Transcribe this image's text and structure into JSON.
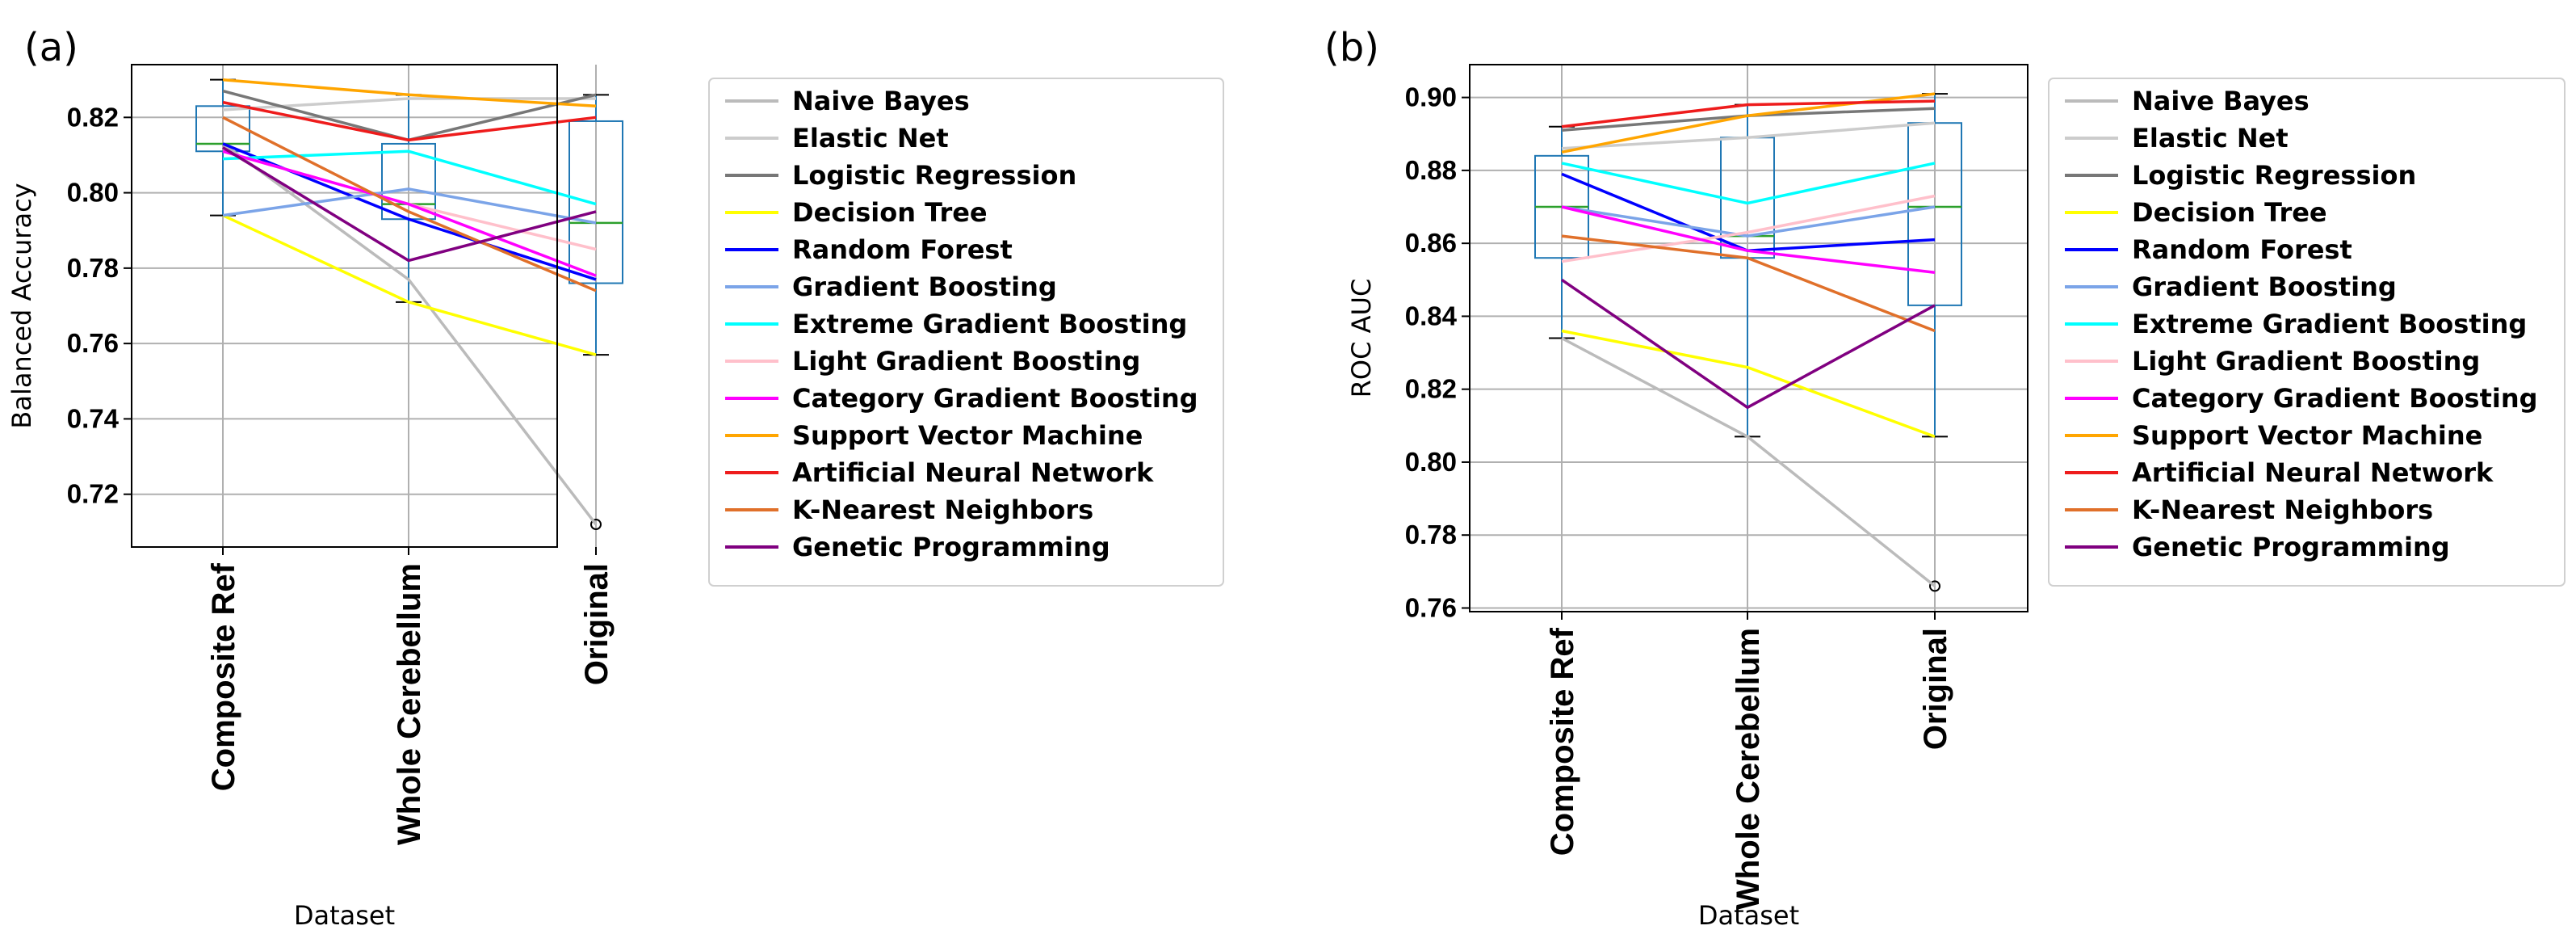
{
  "chart_data": [
    {
      "panel_label": "(a)",
      "type": "line",
      "ylabel": "Balanced Accuracy",
      "xlabel": "Dataset",
      "categories": [
        "Composite Ref",
        "Whole Cerebellum",
        "Original"
      ],
      "ylim": [
        0.706,
        0.834
      ],
      "yticks": [
        0.72,
        0.74,
        0.76,
        0.78,
        0.8,
        0.82
      ],
      "ytick_labels": [
        "0.72",
        "0.74",
        "0.76",
        "0.78",
        "0.80",
        "0.82"
      ],
      "grid": true,
      "legend_position": "right",
      "series": [
        {
          "name": "Naive Bayes",
          "color": "#bbbbbb",
          "values": [
            0.813,
            0.777,
            0.712
          ]
        },
        {
          "name": "Elastic Net",
          "color": "#cccccc",
          "values": [
            0.822,
            0.825,
            0.825
          ]
        },
        {
          "name": "Logistic Regression",
          "color": "#777777",
          "values": [
            0.827,
            0.814,
            0.826
          ]
        },
        {
          "name": "Decision Tree",
          "color": "#ffff00",
          "values": [
            0.794,
            0.771,
            0.757
          ]
        },
        {
          "name": "Random Forest",
          "color": "#0000ff",
          "values": [
            0.813,
            0.793,
            0.777
          ]
        },
        {
          "name": "Gradient Boosting",
          "color": "#7ba4e8",
          "values": [
            0.794,
            0.801,
            0.792
          ]
        },
        {
          "name": "Extreme Gradient Boosting",
          "color": "#00ffff",
          "values": [
            0.809,
            0.811,
            0.797
          ]
        },
        {
          "name": "Light Gradient Boosting",
          "color": "#ffc0cb",
          "values": [
            0.811,
            0.797,
            0.785
          ]
        },
        {
          "name": "Category Gradient Boosting",
          "color": "#ff00ff",
          "values": [
            0.811,
            0.797,
            0.778
          ]
        },
        {
          "name": "Support Vector Machine",
          "color": "#ffa500",
          "values": [
            0.83,
            0.826,
            0.823
          ]
        },
        {
          "name": "Artificial Neural Network",
          "color": "#ee1c1c",
          "values": [
            0.824,
            0.814,
            0.82
          ]
        },
        {
          "name": "K-Nearest Neighbors",
          "color": "#e0702a",
          "values": [
            0.82,
            0.795,
            0.774
          ]
        },
        {
          "name": "Genetic Programming",
          "color": "#800080",
          "values": [
            0.812,
            0.782,
            0.795
          ]
        }
      ],
      "boxes": [
        {
          "q1": 0.811,
          "median": 0.813,
          "q3": 0.823,
          "whisker_low": 0.794,
          "whisker_high": 0.83,
          "outliers": []
        },
        {
          "q1": 0.793,
          "median": 0.797,
          "q3": 0.813,
          "whisker_low": 0.771,
          "whisker_high": 0.826,
          "outliers": []
        },
        {
          "q1": 0.776,
          "median": 0.792,
          "q3": 0.819,
          "whisker_low": 0.757,
          "whisker_high": 0.826,
          "outliers": [
            0.712
          ]
        }
      ]
    },
    {
      "panel_label": "(b)",
      "type": "line",
      "ylabel": "ROC AUC",
      "xlabel": "Dataset",
      "categories": [
        "Composite Ref",
        "Whole Cerebellum",
        "Original"
      ],
      "ylim": [
        0.759,
        0.909
      ],
      "yticks": [
        0.76,
        0.78,
        0.8,
        0.82,
        0.84,
        0.86,
        0.88,
        0.9
      ],
      "ytick_labels": [
        "0.76",
        "0.78",
        "0.80",
        "0.82",
        "0.84",
        "0.86",
        "0.88",
        "0.90"
      ],
      "grid": true,
      "legend_position": "right",
      "series": [
        {
          "name": "Naive Bayes",
          "color": "#bbbbbb",
          "values": [
            0.834,
            0.807,
            0.766
          ]
        },
        {
          "name": "Elastic Net",
          "color": "#cccccc",
          "values": [
            0.886,
            0.889,
            0.893
          ]
        },
        {
          "name": "Logistic Regression",
          "color": "#777777",
          "values": [
            0.891,
            0.895,
            0.897
          ]
        },
        {
          "name": "Decision Tree",
          "color": "#ffff00",
          "values": [
            0.836,
            0.826,
            0.807
          ]
        },
        {
          "name": "Random Forest",
          "color": "#0000ff",
          "values": [
            0.879,
            0.858,
            0.861
          ]
        },
        {
          "name": "Gradient Boosting",
          "color": "#7ba4e8",
          "values": [
            0.87,
            0.862,
            0.87
          ]
        },
        {
          "name": "Extreme Gradient Boosting",
          "color": "#00ffff",
          "values": [
            0.882,
            0.871,
            0.882
          ]
        },
        {
          "name": "Light Gradient Boosting",
          "color": "#ffc0cb",
          "values": [
            0.855,
            0.863,
            0.873
          ]
        },
        {
          "name": "Category Gradient Boosting",
          "color": "#ff00ff",
          "values": [
            0.87,
            0.858,
            0.852
          ]
        },
        {
          "name": "Support Vector Machine",
          "color": "#ffa500",
          "values": [
            0.885,
            0.895,
            0.901
          ]
        },
        {
          "name": "Artificial Neural Network",
          "color": "#ee1c1c",
          "values": [
            0.892,
            0.898,
            0.899
          ]
        },
        {
          "name": "K-Nearest Neighbors",
          "color": "#e0702a",
          "values": [
            0.862,
            0.856,
            0.836
          ]
        },
        {
          "name": "Genetic Programming",
          "color": "#800080",
          "values": [
            0.85,
            0.815,
            0.843
          ]
        }
      ],
      "boxes": [
        {
          "q1": 0.856,
          "median": 0.87,
          "q3": 0.884,
          "whisker_low": 0.834,
          "whisker_high": 0.892,
          "outliers": []
        },
        {
          "q1": 0.856,
          "median": 0.862,
          "q3": 0.889,
          "whisker_low": 0.807,
          "whisker_high": 0.898,
          "outliers": []
        },
        {
          "q1": 0.843,
          "median": 0.87,
          "q3": 0.893,
          "whisker_low": 0.807,
          "whisker_high": 0.901,
          "outliers": [
            0.766
          ]
        }
      ]
    }
  ]
}
